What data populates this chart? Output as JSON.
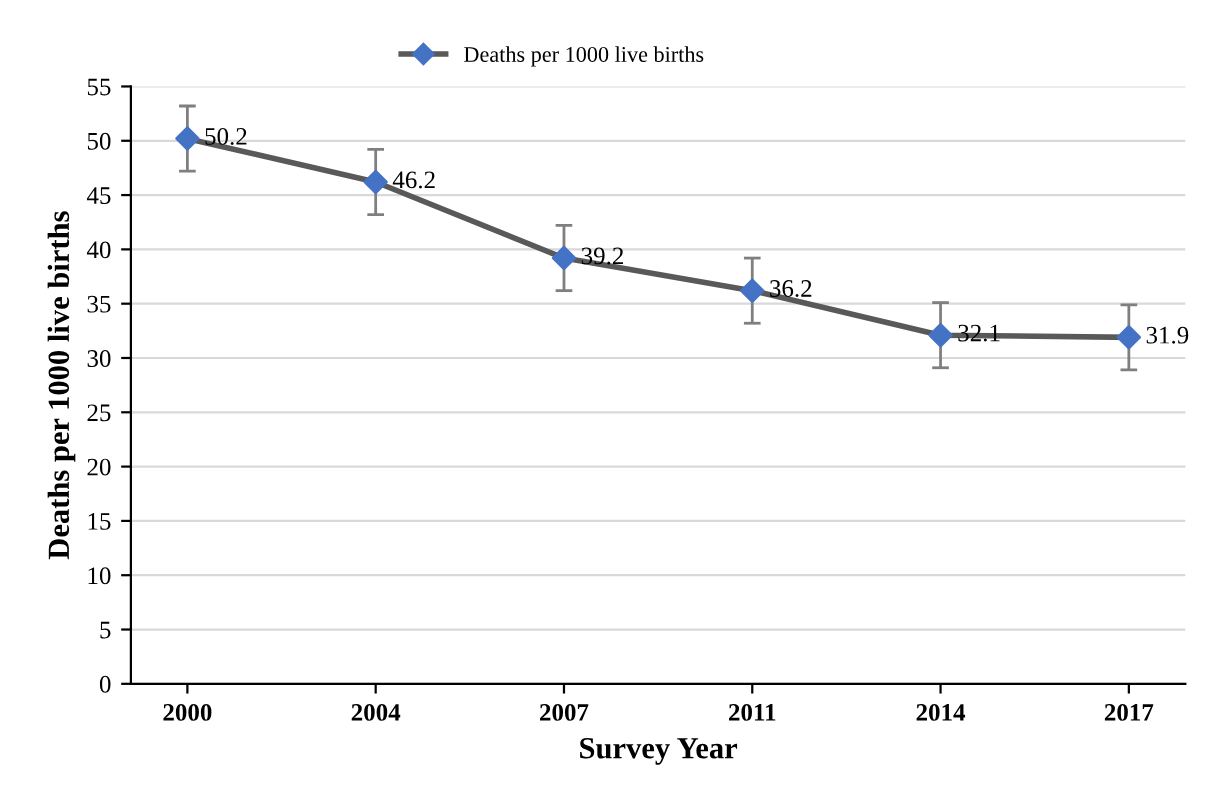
{
  "chart_data": {
    "type": "line",
    "xlabel": "Survey Year",
    "ylabel": "Deaths per 1000 live births",
    "categories": [
      "2000",
      "2004",
      "2007",
      "2011",
      "2014",
      "2017"
    ],
    "series": [
      {
        "name": "Deaths per 1000 live births",
        "color": "#595959",
        "colors": [
          "#4472c4",
          "#4472c4",
          "#4472c4",
          "#4472c4",
          "#4472c4",
          "#4472c4"
        ],
        "values": [
          50.2,
          46.2,
          39.2,
          36.2,
          32.1,
          31.9
        ],
        "errors": [
          3,
          3,
          3,
          3,
          3,
          3
        ]
      }
    ],
    "ylim": [
      0,
      55
    ],
    "yticks": [
      0,
      5,
      10,
      15,
      20,
      25,
      30,
      35,
      40,
      45,
      50,
      55
    ],
    "grid": "y",
    "legend": "top",
    "marker": "diamond",
    "line_style": "solid",
    "data_labels": true
  }
}
